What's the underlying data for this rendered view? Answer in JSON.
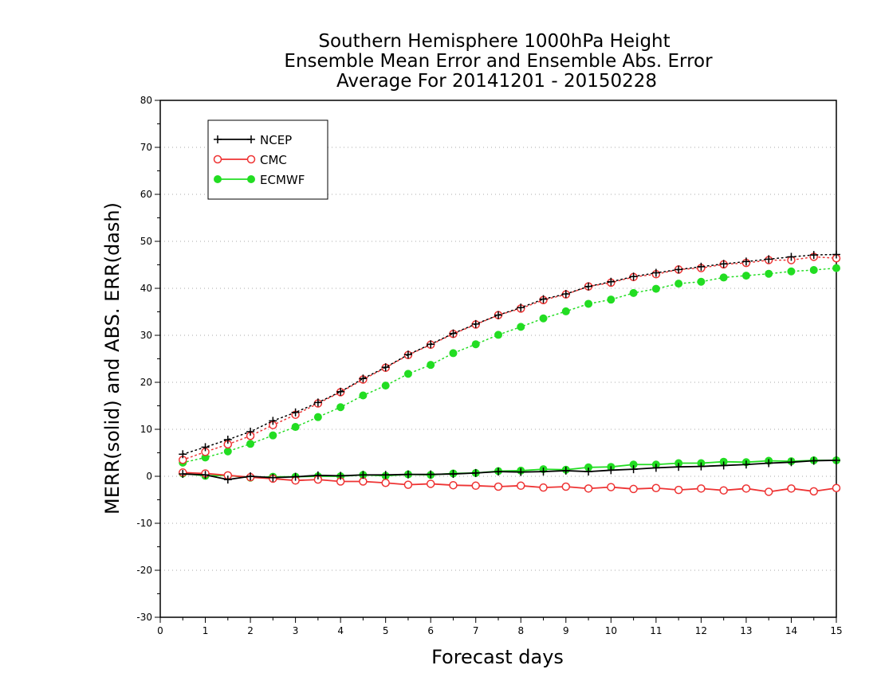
{
  "chart_data": {
    "type": "line",
    "title_lines": [
      "Southern Hemisphere 1000hPa Height",
      "Ensemble Mean Error and Ensemble Abs. Error",
      "Average For 20141201 - 20150228"
    ],
    "xlabel": "Forecast days",
    "ylabel": "MERR(solid) and ABS. ERR(dash)",
    "xlim": [
      0,
      15
    ],
    "ylim": [
      -30,
      80
    ],
    "x_ticks": [
      0,
      1,
      2,
      3,
      4,
      5,
      6,
      7,
      8,
      9,
      10,
      11,
      12,
      13,
      14,
      15
    ],
    "y_ticks": [
      -30,
      -20,
      -10,
      0,
      10,
      20,
      30,
      40,
      50,
      60,
      70,
      80
    ],
    "grid": "horizontal dotted",
    "legend_position": "top-left",
    "x": [
      0.5,
      1,
      1.5,
      2,
      2.5,
      3,
      3.5,
      4,
      4.5,
      5,
      5.5,
      6,
      6.5,
      7,
      7.5,
      8,
      8.5,
      9,
      9.5,
      10,
      10.5,
      11,
      11.5,
      12,
      12.5,
      13,
      13.5,
      14,
      14.5,
      15
    ],
    "series": [
      {
        "name": "NCEP",
        "color": "#000000",
        "marker": "plus",
        "abs_error": [
          4.7,
          6.2,
          7.8,
          9.5,
          11.8,
          13.6,
          15.7,
          18.0,
          20.8,
          23.2,
          25.9,
          28.1,
          30.4,
          32.4,
          34.3,
          35.9,
          37.7,
          38.8,
          40.4,
          41.4,
          42.5,
          43.3,
          44.0,
          44.6,
          45.2,
          45.7,
          46.2,
          46.7,
          47.1,
          47.2
        ],
        "mean_error": [
          0.5,
          0.3,
          -0.7,
          0.0,
          -0.3,
          -0.1,
          0.2,
          0.1,
          0.3,
          0.3,
          0.4,
          0.4,
          0.5,
          0.7,
          1.0,
          0.9,
          1.0,
          1.2,
          1.0,
          1.3,
          1.5,
          1.8,
          2.0,
          2.1,
          2.3,
          2.5,
          2.8,
          3.0,
          3.3,
          3.4
        ]
      },
      {
        "name": "CMC",
        "color": "#ee3333",
        "marker": "open-circle",
        "abs_error": [
          3.5,
          5.2,
          6.8,
          8.6,
          10.9,
          13.1,
          15.5,
          17.9,
          20.6,
          23.1,
          25.8,
          28.0,
          30.3,
          32.3,
          34.3,
          35.7,
          37.5,
          38.7,
          40.4,
          41.2,
          42.4,
          43.0,
          44.0,
          44.3,
          45.1,
          45.4,
          46.0,
          46.0,
          46.7,
          46.4
        ],
        "mean_error": [
          0.8,
          0.6,
          0.2,
          -0.2,
          -0.5,
          -0.9,
          -0.7,
          -1.1,
          -1.1,
          -1.4,
          -1.8,
          -1.6,
          -1.9,
          -2.0,
          -2.2,
          -2.0,
          -2.4,
          -2.2,
          -2.6,
          -2.3,
          -2.7,
          -2.5,
          -2.9,
          -2.6,
          -3.0,
          -2.6,
          -3.3,
          -2.6,
          -3.2,
          -2.5
        ]
      },
      {
        "name": "ECMWF",
        "color": "#22dd22",
        "marker": "filled-circle",
        "abs_error": [
          2.9,
          4.0,
          5.3,
          6.9,
          8.7,
          10.5,
          12.6,
          14.7,
          17.2,
          19.3,
          21.8,
          23.7,
          26.2,
          28.1,
          30.1,
          31.8,
          33.6,
          35.1,
          36.7,
          37.6,
          39.0,
          39.9,
          41.0,
          41.4,
          42.3,
          42.7,
          43.1,
          43.6,
          43.9,
          44.3
        ],
        "mean_error": [
          0.6,
          0.1,
          0.2,
          -0.3,
          -0.1,
          -0.1,
          0.0,
          0.0,
          0.3,
          0.1,
          0.4,
          0.3,
          0.6,
          0.7,
          1.1,
          1.2,
          1.5,
          1.4,
          1.9,
          2.0,
          2.5,
          2.5,
          2.8,
          2.8,
          3.1,
          3.0,
          3.3,
          3.2,
          3.4,
          3.4
        ]
      }
    ]
  }
}
